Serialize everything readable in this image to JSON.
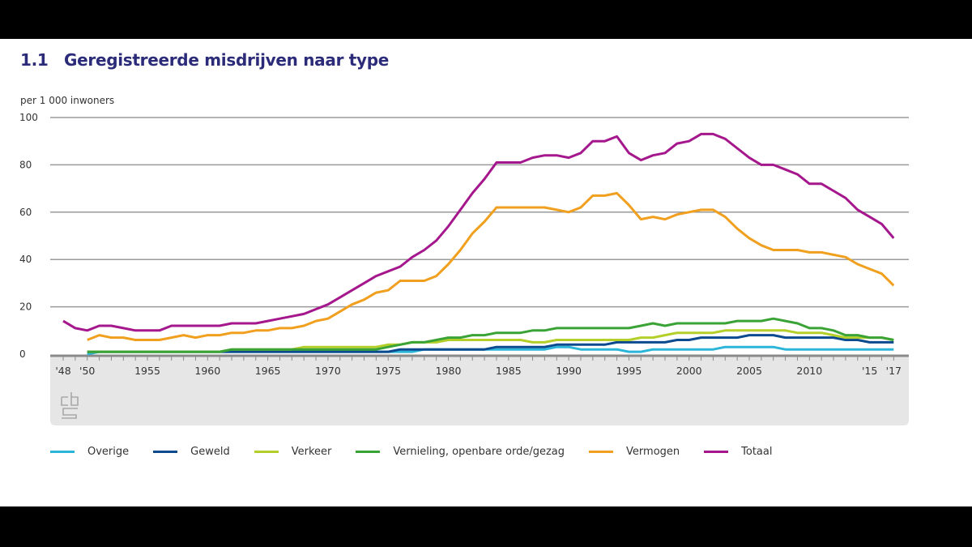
{
  "title_number": "1.1",
  "title": "Geregistreerde misdrijven naar type",
  "logo_text": "cbs",
  "chart_data": {
    "type": "line",
    "title": "Geregistreerde misdrijven naar type",
    "ylabel": "per 1 000 inwoners",
    "ylim": [
      0,
      100
    ],
    "yticks": [
      "0",
      "20",
      "40",
      "60",
      "80",
      "100"
    ],
    "xlim": [
      1948,
      2017
    ],
    "xtick_labels": [
      {
        "year": 1948,
        "label": "'48"
      },
      {
        "year": 1950,
        "label": "'50"
      },
      {
        "year": 1955,
        "label": "1955"
      },
      {
        "year": 1960,
        "label": "1960"
      },
      {
        "year": 1965,
        "label": "1965"
      },
      {
        "year": 1970,
        "label": "1970"
      },
      {
        "year": 1975,
        "label": "1975"
      },
      {
        "year": 1980,
        "label": "1980"
      },
      {
        "year": 1985,
        "label": "1985"
      },
      {
        "year": 1990,
        "label": "1990"
      },
      {
        "year": 1995,
        "label": "1995"
      },
      {
        "year": 2000,
        "label": "2000"
      },
      {
        "year": 2005,
        "label": "2005"
      },
      {
        "year": 2010,
        "label": "2010"
      },
      {
        "year": 2015,
        "label": "'15"
      },
      {
        "year": 2017,
        "label": "'17"
      }
    ],
    "grid": true,
    "legend_position": "bottom",
    "series": [
      {
        "name": "Overige",
        "color": "#2bb5d8",
        "start_year": 1950,
        "values": [
          0,
          1,
          1,
          1,
          1,
          1,
          1,
          1,
          1,
          1,
          1,
          1,
          1,
          1,
          1,
          1,
          1,
          1,
          1,
          1,
          1,
          1,
          1,
          1,
          1,
          1,
          1,
          1,
          2,
          2,
          2,
          2,
          2,
          2,
          2,
          2,
          2,
          2,
          2,
          3,
          3,
          2,
          2,
          2,
          2,
          1,
          1,
          2,
          2,
          2,
          2,
          2,
          2,
          3,
          3,
          3,
          3,
          3,
          2,
          2,
          2,
          2,
          2,
          2,
          2,
          2,
          2,
          2
        ]
      },
      {
        "name": "Geweld",
        "color": "#0b4a8f",
        "start_year": 1950,
        "values": [
          1,
          1,
          1,
          1,
          1,
          1,
          1,
          1,
          1,
          1,
          1,
          1,
          1,
          1,
          1,
          1,
          1,
          1,
          1,
          1,
          1,
          1,
          1,
          1,
          1,
          1,
          2,
          2,
          2,
          2,
          2,
          2,
          2,
          2,
          3,
          3,
          3,
          3,
          3,
          4,
          4,
          4,
          4,
          4,
          5,
          5,
          5,
          5,
          5,
          6,
          6,
          7,
          7,
          7,
          7,
          8,
          8,
          8,
          7,
          7,
          7,
          7,
          7,
          6,
          6,
          5,
          5,
          5
        ]
      },
      {
        "name": "Verkeer",
        "color": "#b5cf2a",
        "start_year": 1950,
        "values": [
          1,
          1,
          1,
          1,
          1,
          1,
          1,
          1,
          1,
          1,
          1,
          1,
          2,
          2,
          2,
          2,
          2,
          2,
          3,
          3,
          3,
          3,
          3,
          3,
          3,
          4,
          4,
          5,
          5,
          5,
          6,
          6,
          6,
          6,
          6,
          6,
          6,
          5,
          5,
          6,
          6,
          6,
          6,
          6,
          6,
          6,
          7,
          7,
          8,
          9,
          9,
          9,
          9,
          10,
          10,
          10,
          10,
          10,
          10,
          9,
          9,
          9,
          8,
          7,
          7,
          7,
          7,
          6
        ]
      },
      {
        "name": "Vernieling, openbare orde/gezag",
        "color": "#3aa335",
        "start_year": 1950,
        "values": [
          1,
          1,
          1,
          1,
          1,
          1,
          1,
          1,
          1,
          1,
          1,
          1,
          2,
          2,
          2,
          2,
          2,
          2,
          2,
          2,
          2,
          2,
          2,
          2,
          2,
          3,
          4,
          5,
          5,
          6,
          7,
          7,
          8,
          8,
          9,
          9,
          9,
          10,
          10,
          11,
          11,
          11,
          11,
          11,
          11,
          11,
          12,
          13,
          12,
          13,
          13,
          13,
          13,
          13,
          14,
          14,
          14,
          15,
          14,
          13,
          11,
          11,
          10,
          8,
          8,
          7,
          7,
          6
        ]
      },
      {
        "name": "Vermogen",
        "color": "#f0a01e",
        "start_year": 1950,
        "values": [
          6,
          8,
          7,
          7,
          6,
          6,
          6,
          7,
          8,
          7,
          8,
          8,
          9,
          9,
          10,
          10,
          11,
          11,
          12,
          14,
          15,
          18,
          21,
          23,
          26,
          27,
          31,
          31,
          31,
          33,
          38,
          44,
          51,
          56,
          62,
          62,
          62,
          62,
          62,
          61,
          60,
          62,
          67,
          67,
          68,
          63,
          57,
          58,
          57,
          59,
          60,
          61,
          61,
          58,
          53,
          49,
          46,
          44,
          44,
          44,
          43,
          43,
          42,
          41,
          38,
          36,
          34,
          29
        ]
      },
      {
        "name": "Totaal",
        "color": "#a5178c",
        "start_year": 1948,
        "values": [
          14,
          11,
          10,
          12,
          12,
          11,
          10,
          10,
          10,
          12,
          12,
          12,
          12,
          12,
          13,
          13,
          13,
          14,
          15,
          16,
          17,
          19,
          21,
          24,
          27,
          30,
          33,
          35,
          37,
          41,
          44,
          48,
          54,
          61,
          68,
          74,
          81,
          81,
          81,
          83,
          84,
          84,
          83,
          85,
          90,
          90,
          92,
          85,
          82,
          84,
          85,
          89,
          90,
          93,
          93,
          91,
          87,
          83,
          80,
          80,
          78,
          76,
          72,
          72,
          69,
          66,
          61,
          58,
          55,
          49
        ]
      }
    ]
  }
}
